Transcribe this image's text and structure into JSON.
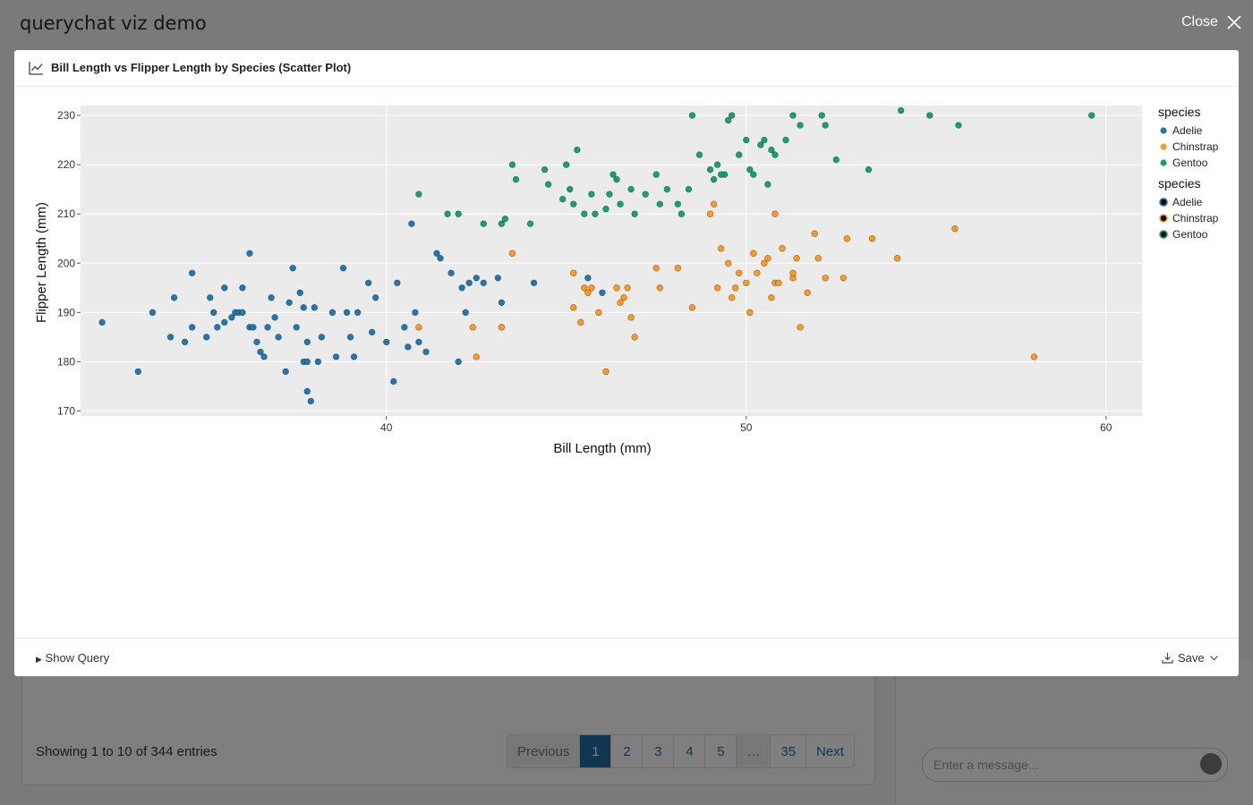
{
  "app": {
    "title": "querychat viz demo",
    "close_label": "Close",
    "entries_text": "Showing 1 to 10 of 344 entries",
    "pagination": [
      "Previous",
      "1",
      "2",
      "3",
      "4",
      "5",
      "…",
      "35",
      "Next"
    ],
    "message_placeholder": "Enter a message..."
  },
  "modal": {
    "title": "Bill Length vs Flipper Length by Species (Scatter Plot)",
    "show_query_label": "Show Query",
    "save_label": "Save",
    "icons": {
      "header": "line-chart-icon",
      "save": "download-icon",
      "close": "close-icon"
    }
  },
  "chart_data": {
    "type": "scatter",
    "title": "",
    "xlabel": "Bill Length (mm)",
    "ylabel": "Flipper Length (mm)",
    "xlim": [
      31.5,
      61
    ],
    "ylim": [
      169,
      232
    ],
    "xticks": [
      40,
      50,
      60
    ],
    "yticks": [
      170,
      180,
      190,
      200,
      210,
      220,
      230
    ],
    "grid": true,
    "legend_position": "right",
    "legends": [
      {
        "title": "species",
        "style": "fill",
        "entries": [
          "Adelie",
          "Chinstrap",
          "Gentoo"
        ]
      },
      {
        "title": "species",
        "style": "outline",
        "entries": [
          "Adelie",
          "Chinstrap",
          "Gentoo"
        ]
      }
    ],
    "colors": {
      "Adelie": "#1f77b4",
      "Chinstrap": "#ff9a1a",
      "Gentoo": "#14a36e"
    },
    "series": [
      {
        "name": "Adelie",
        "points": [
          [
            32.1,
            188
          ],
          [
            33.1,
            178
          ],
          [
            33.5,
            190
          ],
          [
            34.0,
            185
          ],
          [
            34.1,
            193
          ],
          [
            34.4,
            184
          ],
          [
            34.6,
            187
          ],
          [
            34.6,
            198
          ],
          [
            35.0,
            185
          ],
          [
            35.1,
            193
          ],
          [
            35.2,
            190
          ],
          [
            35.3,
            187
          ],
          [
            35.5,
            188
          ],
          [
            35.5,
            195
          ],
          [
            35.7,
            189
          ],
          [
            35.8,
            190
          ],
          [
            35.9,
            190
          ],
          [
            36.0,
            190
          ],
          [
            36.0,
            195
          ],
          [
            36.2,
            187
          ],
          [
            36.3,
            187
          ],
          [
            36.4,
            184
          ],
          [
            36.5,
            182
          ],
          [
            36.6,
            181
          ],
          [
            36.7,
            187
          ],
          [
            36.8,
            193
          ],
          [
            36.9,
            189
          ],
          [
            37.0,
            185
          ],
          [
            37.2,
            178
          ],
          [
            37.3,
            192
          ],
          [
            37.4,
            199
          ],
          [
            37.5,
            187
          ],
          [
            37.6,
            194
          ],
          [
            37.7,
            180
          ],
          [
            37.7,
            191
          ],
          [
            37.8,
            174
          ],
          [
            37.8,
            180
          ],
          [
            37.9,
            172
          ],
          [
            38.0,
            191
          ],
          [
            38.1,
            180
          ],
          [
            38.2,
            185
          ],
          [
            38.5,
            190
          ],
          [
            38.6,
            181
          ],
          [
            38.8,
            199
          ],
          [
            39.0,
            185
          ],
          [
            39.1,
            181
          ],
          [
            39.2,
            190
          ],
          [
            39.5,
            196
          ],
          [
            39.7,
            193
          ],
          [
            40.0,
            184
          ],
          [
            40.2,
            176
          ],
          [
            40.3,
            196
          ],
          [
            40.5,
            187
          ],
          [
            40.6,
            183
          ],
          [
            40.8,
            190
          ],
          [
            40.9,
            184
          ],
          [
            41.1,
            182
          ],
          [
            41.4,
            202
          ],
          [
            41.5,
            201
          ],
          [
            41.8,
            198
          ],
          [
            42.0,
            180
          ],
          [
            42.1,
            195
          ],
          [
            42.2,
            190
          ],
          [
            42.3,
            196
          ],
          [
            42.5,
            197
          ],
          [
            42.7,
            196
          ],
          [
            43.1,
            197
          ],
          [
            43.2,
            192
          ],
          [
            44.1,
            196
          ],
          [
            45.6,
            197
          ],
          [
            46.0,
            194
          ],
          [
            39.6,
            186
          ],
          [
            38.9,
            190
          ],
          [
            37.8,
            184
          ],
          [
            36.2,
            202
          ],
          [
            40.7,
            208
          ]
        ]
      },
      {
        "name": "Chinstrap",
        "points": [
          [
            40.9,
            187
          ],
          [
            42.4,
            187
          ],
          [
            42.5,
            181
          ],
          [
            43.2,
            187
          ],
          [
            43.5,
            202
          ],
          [
            45.2,
            198
          ],
          [
            45.2,
            191
          ],
          [
            45.4,
            188
          ],
          [
            45.5,
            195
          ],
          [
            45.6,
            194
          ],
          [
            45.7,
            195
          ],
          [
            45.9,
            190
          ],
          [
            46.1,
            178
          ],
          [
            46.4,
            195
          ],
          [
            46.5,
            192
          ],
          [
            46.6,
            193
          ],
          [
            46.7,
            195
          ],
          [
            46.8,
            189
          ],
          [
            46.9,
            185
          ],
          [
            47.5,
            199
          ],
          [
            47.6,
            195
          ],
          [
            48.1,
            199
          ],
          [
            48.5,
            191
          ],
          [
            49.0,
            210
          ],
          [
            49.2,
            195
          ],
          [
            49.3,
            203
          ],
          [
            49.5,
            200
          ],
          [
            49.6,
            193
          ],
          [
            49.7,
            195
          ],
          [
            49.8,
            198
          ],
          [
            50.1,
            190
          ],
          [
            50.2,
            202
          ],
          [
            50.3,
            198
          ],
          [
            50.5,
            200
          ],
          [
            50.6,
            201
          ],
          [
            50.7,
            193
          ],
          [
            50.8,
            196
          ],
          [
            51.0,
            203
          ],
          [
            51.3,
            197
          ],
          [
            51.4,
            201
          ],
          [
            51.5,
            187
          ],
          [
            51.7,
            194
          ],
          [
            51.9,
            206
          ],
          [
            52.0,
            201
          ],
          [
            52.2,
            197
          ],
          [
            52.7,
            197
          ],
          [
            52.8,
            205
          ],
          [
            53.5,
            205
          ],
          [
            54.2,
            201
          ],
          [
            55.8,
            207
          ],
          [
            58.0,
            181
          ],
          [
            50.9,
            196
          ],
          [
            51.3,
            198
          ],
          [
            50.0,
            196
          ],
          [
            49.1,
            212
          ],
          [
            50.8,
            210
          ]
        ]
      },
      {
        "name": "Gentoo",
        "points": [
          [
            40.9,
            214
          ],
          [
            41.7,
            210
          ],
          [
            42.0,
            210
          ],
          [
            42.7,
            208
          ],
          [
            43.2,
            208
          ],
          [
            43.3,
            209
          ],
          [
            43.5,
            220
          ],
          [
            43.6,
            217
          ],
          [
            44.0,
            208
          ],
          [
            44.4,
            219
          ],
          [
            44.5,
            216
          ],
          [
            44.9,
            213
          ],
          [
            45.0,
            220
          ],
          [
            45.1,
            215
          ],
          [
            45.2,
            212
          ],
          [
            45.3,
            223
          ],
          [
            45.5,
            210
          ],
          [
            45.7,
            214
          ],
          [
            45.8,
            210
          ],
          [
            46.1,
            211
          ],
          [
            46.2,
            214
          ],
          [
            46.3,
            218
          ],
          [
            46.4,
            217
          ],
          [
            46.5,
            212
          ],
          [
            46.8,
            215
          ],
          [
            46.9,
            210
          ],
          [
            47.2,
            214
          ],
          [
            47.5,
            218
          ],
          [
            47.6,
            212
          ],
          [
            47.8,
            215
          ],
          [
            48.1,
            212
          ],
          [
            48.4,
            215
          ],
          [
            48.7,
            222
          ],
          [
            49.0,
            219
          ],
          [
            49.1,
            217
          ],
          [
            49.2,
            220
          ],
          [
            49.4,
            218
          ],
          [
            49.5,
            229
          ],
          [
            49.6,
            230
          ],
          [
            49.8,
            222
          ],
          [
            50.0,
            225
          ],
          [
            50.1,
            219
          ],
          [
            50.2,
            218
          ],
          [
            50.4,
            224
          ],
          [
            50.5,
            225
          ],
          [
            50.7,
            223
          ],
          [
            50.8,
            222
          ],
          [
            51.1,
            225
          ],
          [
            51.3,
            230
          ],
          [
            51.5,
            228
          ],
          [
            52.1,
            230
          ],
          [
            52.2,
            228
          ],
          [
            52.5,
            221
          ],
          [
            53.4,
            219
          ],
          [
            54.3,
            231
          ],
          [
            55.1,
            230
          ],
          [
            55.9,
            228
          ],
          [
            59.6,
            230
          ],
          [
            48.5,
            230
          ],
          [
            48.2,
            210
          ],
          [
            49.3,
            218
          ],
          [
            50.6,
            216
          ]
        ]
      }
    ]
  }
}
